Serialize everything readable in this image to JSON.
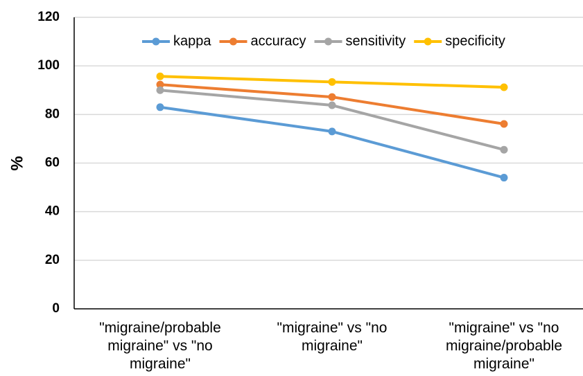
{
  "chart_data": {
    "type": "line",
    "y_label": "%",
    "categories": [
      "\"migraine/probable migraine\" vs \"no migraine\"",
      "\"migraine\" vs \"no migraine\"",
      "\"migraine\" vs \"no migraine/probable migraine\""
    ],
    "series": [
      {
        "name": "kappa",
        "color": "#5b9bd5",
        "values": [
          83,
          73,
          54
        ]
      },
      {
        "name": "accuracy",
        "color": "#ed7d31",
        "values": [
          92.3,
          87.2,
          76.1
        ]
      },
      {
        "name": "sensitivity",
        "color": "#a5a5a5",
        "values": [
          90,
          83.8,
          65.5
        ]
      },
      {
        "name": "specificity",
        "color": "#ffc000",
        "values": [
          95.7,
          93.4,
          91.2
        ]
      }
    ],
    "ylim": [
      0,
      120
    ],
    "yticks": [
      0,
      20,
      40,
      60,
      80,
      100,
      120
    ],
    "grid": true,
    "legend": "top"
  }
}
